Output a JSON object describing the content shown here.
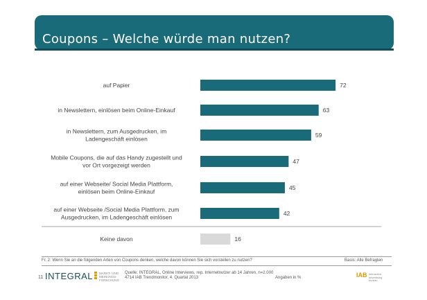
{
  "header": {
    "title": "Coupons – Welche würde man nutzen?"
  },
  "chart_data": {
    "type": "bar",
    "orientation": "horizontal",
    "categories": [
      "auf Papier",
      "in Newslettern, einlösen beim Online-Einkauf",
      "in Newslettern, zum Ausgedrucken, im Ladengeschäft einlösen",
      "Mobile Coupons, die auf das Handy zugestellt und vor Ort vorgezeigt werden",
      "auf einer Webseite/ Social Media Plattform, einlösen beim Online-Einkauf",
      "auf einer Webseite /Social Media Plattform, zum Ausgedrucken, im Ladengeschäft einlösen",
      "Keine  davon"
    ],
    "label_lines": [
      [
        "auf Papier"
      ],
      [
        "in Newslettern, einlösen beim Online-Einkauf"
      ],
      [
        "in Newslettern, zum Ausgedrucken, im",
        "Ladengeschäft einlösen"
      ],
      [
        "Mobile Coupons, die auf das Handy zugestellt und",
        "vor Ort vorgezeigt werden"
      ],
      [
        "auf einer Webseite/ Social Media Plattform,",
        "einlösen beim Online-Einkauf"
      ],
      [
        "auf einer Webseite /Social Media Plattform, zum",
        "Ausgedrucken, im Ladengeschäft einlösen"
      ],
      [
        "Keine  davon"
      ]
    ],
    "values": [
      72,
      63,
      59,
      47,
      45,
      42,
      16
    ],
    "bar_colors": [
      "#1a6b7a",
      "#1a6b7a",
      "#1a6b7a",
      "#1a6b7a",
      "#1a6b7a",
      "#1a6b7a",
      "#d9d9d9"
    ],
    "xlim": [
      0,
      100
    ],
    "grid": false
  },
  "footer": {
    "question": "Fr. 2: Wenn Sie an die folgenden Arten von Coupons denken, welche davon können Sie sich vorstellen zu nutzen?",
    "basis": "Basis: Alle Befragten",
    "source_line1": "Quelle: INTEGRAL, Online Interviews, rep. Internetnutzer ab 14 Jahren, n=2.000",
    "source_line2": "4714 IAB Trendmonitor, 4. Quartal 2013",
    "units": "Angaben in %",
    "logo_number": "11",
    "logo_text": "INTEGRAL",
    "logo_sub": "MARKT- UND MEINUNGS- FORSCHUNG",
    "iab_logo": "IAB",
    "iab_sub": "interactive advertising bureau"
  }
}
